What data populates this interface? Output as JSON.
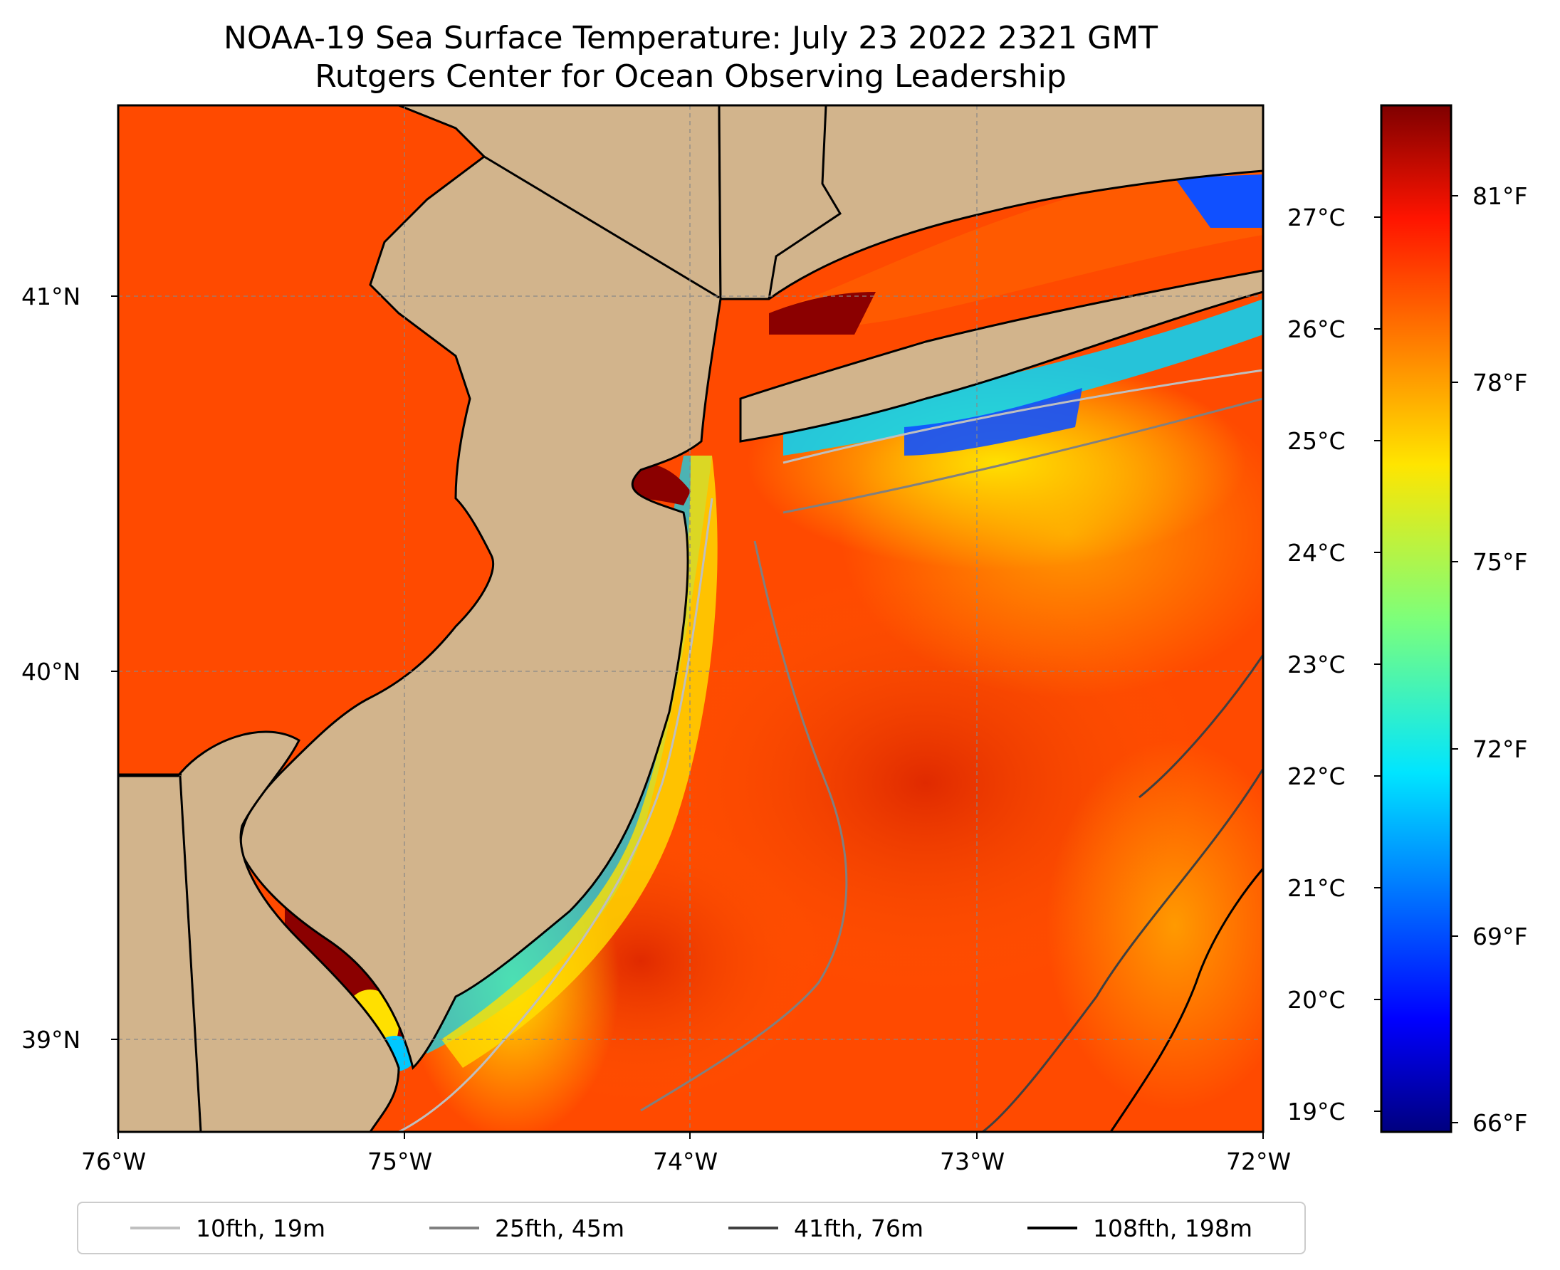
{
  "title": {
    "line1": "NOAA-19 Sea Surface Temperature: July 23 2022 2321 GMT",
    "line2": "Rutgers Center for Ocean Observing Leadership"
  },
  "map": {
    "extent": {
      "lon": [
        -76.0,
        -72.0
      ],
      "lat": [
        38.75,
        41.5
      ]
    },
    "lon_ticks": [
      "76°W",
      "75°W",
      "74°W",
      "73°W",
      "72°W"
    ],
    "lat_ticks": [
      "41°N",
      "40°N",
      "39°N"
    ],
    "land_color": "#D2B48C",
    "gridlines": true
  },
  "colorbar": {
    "colormap": "jet",
    "celsius_labels": [
      "27°C",
      "26°C",
      "25°C",
      "24°C",
      "23°C",
      "22°C",
      "21°C",
      "20°C",
      "19°C"
    ],
    "fahrenheit_labels": [
      "81°F",
      "78°F",
      "75°F",
      "72°F",
      "69°F",
      "66°F"
    ],
    "range_f": [
      65.8,
      82.0
    ]
  },
  "legend": {
    "items": [
      {
        "label": "10fth, 19m",
        "color": "#bfbfbf"
      },
      {
        "label": "25fth, 45m",
        "color": "#808080"
      },
      {
        "label": "41fth, 76m",
        "color": "#404040"
      },
      {
        "label": "108fth, 198m",
        "color": "#000000"
      }
    ]
  }
}
